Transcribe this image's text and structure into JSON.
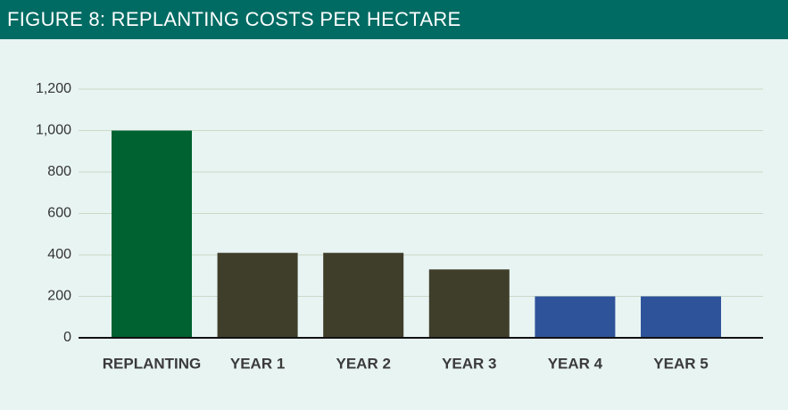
{
  "chart_data": {
    "type": "bar",
    "title": "FIGURE 8:  REPLANTING COSTS PER HECTARE",
    "categories": [
      "REPLANTING",
      "YEAR 1",
      "YEAR 2",
      "YEAR 3",
      "YEAR 4",
      "YEAR 5"
    ],
    "values": [
      1000,
      410,
      410,
      330,
      200,
      200
    ],
    "colors": [
      "#006131",
      "#3f3e2a",
      "#3f3e2a",
      "#3f3e2a",
      "#2f539b",
      "#2f539b"
    ],
    "ylim": [
      0,
      1200
    ],
    "yticks": [
      0,
      200,
      400,
      600,
      800,
      {
        "value": 1000,
        "label": "1,000"
      },
      {
        "value": 1200,
        "label": "1,200"
      }
    ],
    "grid": true
  }
}
